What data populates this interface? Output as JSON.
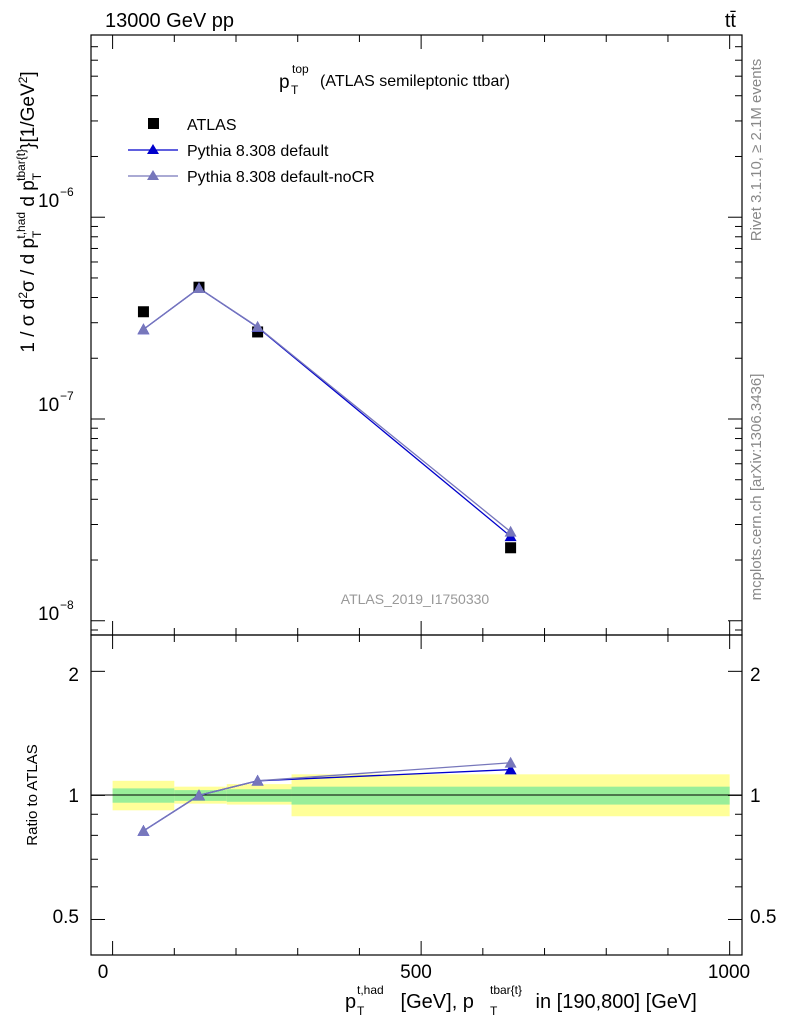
{
  "header": {
    "left_title": "13000 GeV pp",
    "right_title": "tt̄"
  },
  "side_labels": {
    "rivet": "Rivet 3.1.10, ≥ 2.1M events",
    "mcplots": "mcplots.cern.ch [arXiv:1306.3436]"
  },
  "main_plot": {
    "title_main": "p",
    "title_sub": "T",
    "title_sup": "top",
    "title_rest": "(ATLAS semileptonic ttbar)",
    "ylabel": "1 / σ d²σ / d p_T^{t,had} d p_T^{tbar{t}} [1/GeV²]",
    "analysis_id": "ATLAS_2019_I1750330"
  },
  "ratio_plot": {
    "ylabel": "Ratio to ATLAS"
  },
  "x_axis": {
    "label_suffix": " [GeV], p",
    "label_suffix2": " in [190,800] [GeV]",
    "ticks": [
      "0",
      "500",
      "1000"
    ]
  },
  "legend": [
    {
      "name": "ATLAS",
      "color": "#000000",
      "marker": "square"
    },
    {
      "name": "Pythia 8.308 default",
      "color": "#0000cc",
      "marker": "triangle"
    },
    {
      "name": "Pythia 8.308 default-noCR",
      "color": "#7777bb",
      "marker": "triangle"
    }
  ],
  "chart_data": [
    {
      "type": "scatter",
      "title": "p_T^top (ATLAS semileptonic ttbar)",
      "xlabel": "p_T^{t,had} [GeV], p_T^{tbar{t}} in [190,800] [GeV]",
      "ylabel": "1 / σ d²σ / d p_T^{t,had} d p_T^{tbar{t}} [1/GeV²]",
      "log_y": true,
      "xlim": [
        -35,
        1020
      ],
      "ylim": [
        8.5e-09,
        8e-06
      ],
      "y_ticks": [
        "10^-8",
        "10^-7",
        "10^-6"
      ],
      "series": [
        {
          "name": "ATLAS",
          "x": [
            50,
            140,
            235,
            645
          ],
          "y": [
            3.4e-07,
            4.5e-07,
            2.7e-07,
            2.3e-08
          ]
        },
        {
          "name": "Pythia 8.308 default",
          "x": [
            50,
            140,
            235,
            645
          ],
          "y": [
            2.78e-07,
            4.45e-07,
            2.85e-07,
            2.62e-08
          ]
        },
        {
          "name": "Pythia 8.308 default-noCR",
          "x": [
            50,
            140,
            235,
            645
          ],
          "y": [
            2.78e-07,
            4.45e-07,
            2.86e-07,
            2.76e-08
          ]
        }
      ]
    },
    {
      "type": "line",
      "ylabel": "Ratio to ATLAS",
      "log_y": true,
      "ylim": [
        0.41,
        2.45
      ],
      "y_ticks": [
        "0.5",
        "1",
        "2"
      ],
      "x": [
        50,
        140,
        235,
        645
      ],
      "series": [
        {
          "name": "Pythia 8.308 default",
          "values": [
            0.82,
            1.0,
            1.085,
            1.155
          ]
        },
        {
          "name": "Pythia 8.308 default-noCR",
          "values": [
            0.82,
            1.0,
            1.085,
            1.2
          ]
        }
      ],
      "uncertainty_bands": [
        {
          "x_range": [
            0,
            100
          ],
          "stat": [
            0.96,
            1.04
          ],
          "total": [
            0.92,
            1.085
          ]
        },
        {
          "x_range": [
            100,
            185
          ],
          "stat": [
            0.97,
            1.03
          ],
          "total": [
            0.955,
            1.05
          ]
        },
        {
          "x_range": [
            185,
            290
          ],
          "stat": [
            0.965,
            1.035
          ],
          "total": [
            0.95,
            1.065
          ]
        },
        {
          "x_range": [
            290,
            1000
          ],
          "stat": [
            0.95,
            1.05
          ],
          "total": [
            0.89,
            1.125
          ]
        }
      ],
      "colors": {
        "stat_band": "#99ee99",
        "total_band": "#ffff99"
      }
    }
  ]
}
